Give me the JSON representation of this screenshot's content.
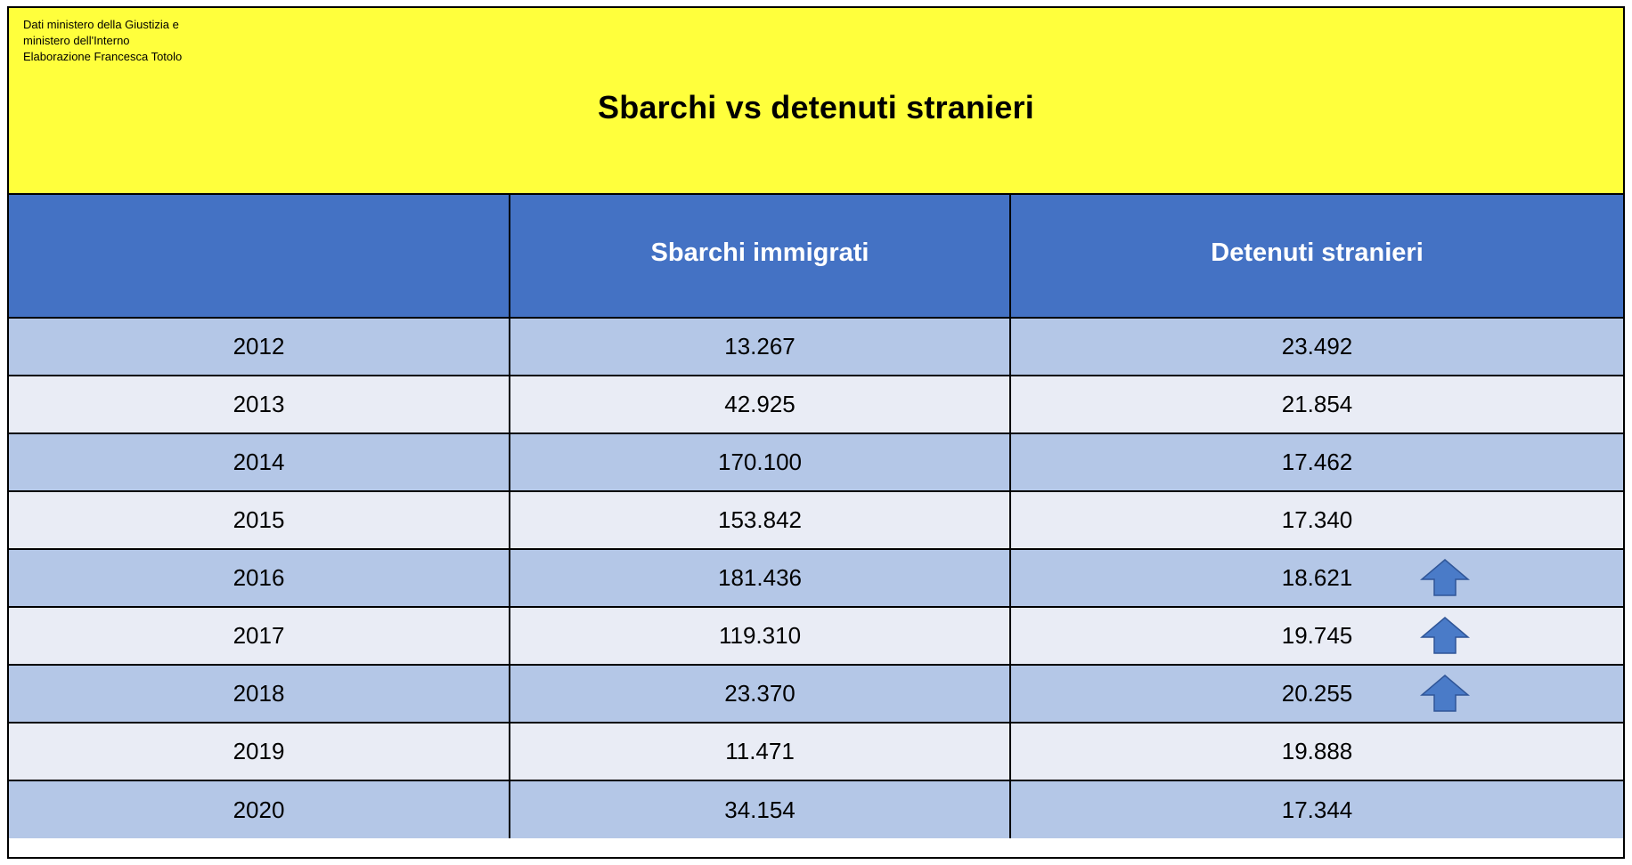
{
  "header": {
    "source_lines": [
      "Dati ministero della Giustizia e",
      "ministero dell'Interno",
      "Elaborazione Francesca Totolo"
    ],
    "title": "Sbarchi vs detenuti stranieri"
  },
  "table": {
    "columns": [
      "",
      "Sbarchi immigrati",
      "Detenuti stranieri"
    ],
    "rows": [
      {
        "year": "2012",
        "sbarchi": "13.267",
        "detenuti": "23.492",
        "arrow": false
      },
      {
        "year": "2013",
        "sbarchi": "42.925",
        "detenuti": "21.854",
        "arrow": false
      },
      {
        "year": "2014",
        "sbarchi": "170.100",
        "detenuti": "17.462",
        "arrow": false
      },
      {
        "year": "2015",
        "sbarchi": "153.842",
        "detenuti": "17.340",
        "arrow": false
      },
      {
        "year": "2016",
        "sbarchi": "181.436",
        "detenuti": "18.621",
        "arrow": true
      },
      {
        "year": "2017",
        "sbarchi": "119.310",
        "detenuti": "19.745",
        "arrow": true
      },
      {
        "year": "2018",
        "sbarchi": "23.370",
        "detenuti": "20.255",
        "arrow": true
      },
      {
        "year": "2019",
        "sbarchi": "11.471",
        "detenuti": "19.888",
        "arrow": false
      },
      {
        "year": "2020",
        "sbarchi": "34.154",
        "detenuti": "17.344",
        "arrow": false
      }
    ]
  },
  "icons": {
    "increase_marker": "up-arrow-icon"
  },
  "colors": {
    "banner_background": "#ffff3c",
    "header_background": "#4472c4",
    "header_text": "#ffffff",
    "row_dark": "#b4c7e7",
    "row_light": "#e9ecf5",
    "arrow_fill": "#4a7bc8",
    "arrow_stroke": "#2f5597",
    "grid_lines": "#000000"
  }
}
